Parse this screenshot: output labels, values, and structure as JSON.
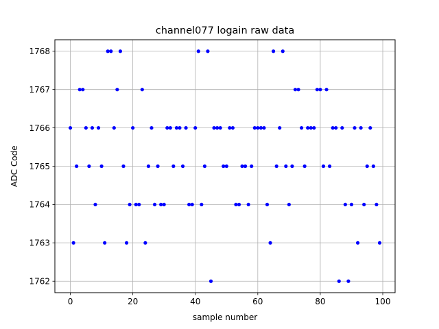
{
  "chart_data": {
    "type": "scatter",
    "title": "channel077 logain raw data",
    "xlabel": "sample number",
    "ylabel": "ADC Code",
    "xlim": [
      -4.95,
      103.95
    ],
    "ylim": [
      1761.7,
      1768.3
    ],
    "xticks": [
      0,
      20,
      40,
      60,
      80,
      100
    ],
    "yticks": [
      1762,
      1763,
      1764,
      1765,
      1766,
      1767,
      1768
    ],
    "xtick_labels": [
      "0",
      "20",
      "40",
      "60",
      "80",
      "100"
    ],
    "ytick_labels": [
      "1762",
      "1763",
      "1764",
      "1765",
      "1766",
      "1767",
      "1768"
    ],
    "grid": true,
    "marker_color": "#0000ff",
    "series": [
      {
        "x": [
          0,
          1,
          2,
          3,
          4,
          5,
          6,
          7,
          8,
          9,
          10,
          11,
          12,
          13,
          14,
          15,
          16,
          17,
          18,
          19,
          20,
          21,
          22,
          23,
          24,
          25,
          26,
          27,
          28,
          29,
          30,
          31,
          32,
          33,
          34,
          35,
          36,
          37,
          38,
          39,
          40,
          41,
          42,
          43,
          44,
          45,
          46,
          47,
          48,
          49,
          50,
          51,
          52,
          53,
          54,
          55,
          56,
          57,
          58,
          59,
          60,
          61,
          62,
          63,
          64,
          65,
          66,
          67,
          68,
          69,
          70,
          71,
          72,
          73,
          74,
          75,
          76,
          77,
          78,
          79,
          80,
          81,
          82,
          83,
          84,
          85,
          86,
          87,
          88,
          89,
          90,
          91,
          92,
          93,
          94,
          95,
          96,
          97,
          98,
          99
        ],
        "y": [
          1766,
          1763,
          1765,
          1767,
          1767,
          1766,
          1765,
          1766,
          1764,
          1766,
          1765,
          1763,
          1768,
          1768,
          1766,
          1767,
          1768,
          1765,
          1763,
          1764,
          1766,
          1764,
          1764,
          1767,
          1763,
          1765,
          1766,
          1764,
          1765,
          1764,
          1764,
          1766,
          1766,
          1765,
          1766,
          1766,
          1765,
          1766,
          1764,
          1764,
          1766,
          1768,
          1764,
          1765,
          1768,
          1762,
          1766,
          1766,
          1766,
          1765,
          1765,
          1766,
          1766,
          1764,
          1764,
          1765,
          1765,
          1764,
          1765,
          1766,
          1766,
          1766,
          1766,
          1764,
          1763,
          1768,
          1765,
          1766,
          1768,
          1765,
          1764,
          1765,
          1767,
          1767,
          1766,
          1765,
          1766,
          1766,
          1766,
          1767,
          1767,
          1765,
          1767,
          1765,
          1766,
          1766,
          1762,
          1766,
          1764,
          1762,
          1764,
          1766,
          1763,
          1766,
          1764,
          1765,
          1766,
          1765,
          1764,
          1763
        ]
      }
    ]
  }
}
